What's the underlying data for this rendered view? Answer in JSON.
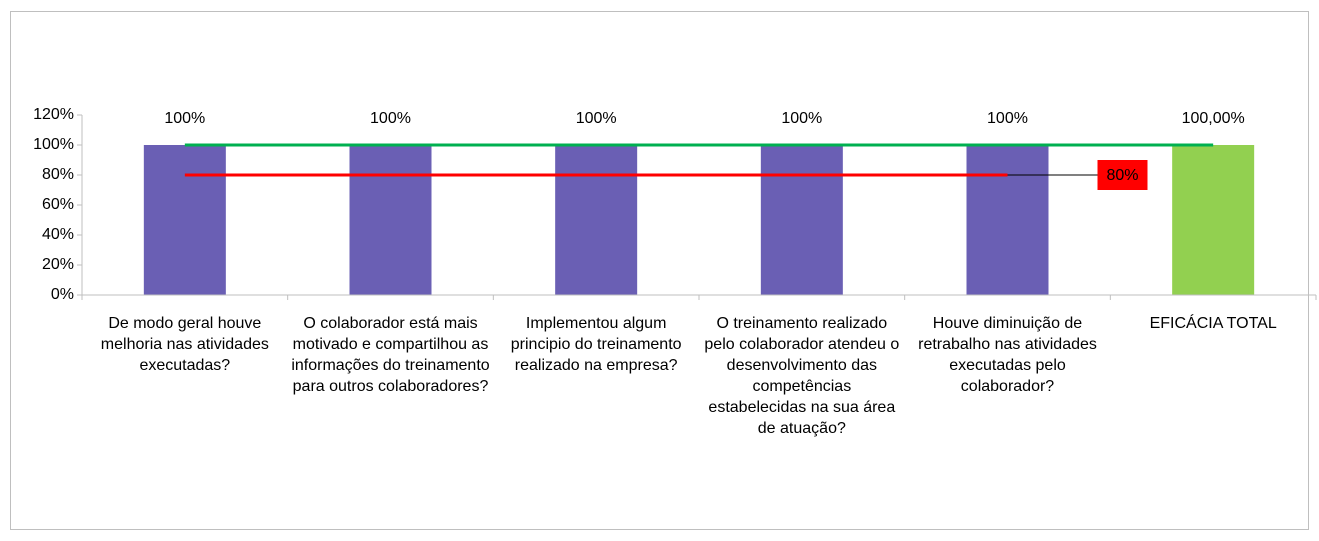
{
  "chart_data": {
    "type": "bar",
    "categories": [
      "De modo geral houve melhoria nas atividades executadas?",
      "O colaborador está mais motivado e compartilhou as informações do treinamento para outros colaboradores?",
      "Implementou algum principio do treinamento realizado na empresa?",
      "O treinamento realizado pelo colaborador atendeu o desenvolvimento das competências estabelecidas na sua área de atuação?",
      "Houve diminuição de retrabalho nas atividades executadas pelo colaborador?",
      "EFICÁCIA TOTAL"
    ],
    "values": [
      100,
      100,
      100,
      100,
      100,
      100
    ],
    "value_labels": [
      "100%",
      "100%",
      "100%",
      "100%",
      "100%",
      "100,00%"
    ],
    "colors": [
      "#6a5fb4",
      "#6a5fb4",
      "#6a5fb4",
      "#6a5fb4",
      "#6a5fb4",
      "#92d050"
    ],
    "series": [
      {
        "type": "line",
        "color": "#00b050",
        "values": [
          100,
          100,
          100,
          100,
          100,
          100
        ]
      },
      {
        "type": "line",
        "color": "#ff0000",
        "values": [
          80,
          80,
          80,
          80,
          80,
          null
        ],
        "value_labels": [
          null,
          null,
          null,
          null,
          "80%",
          null
        ]
      }
    ],
    "ylim": [
      0,
      120
    ],
    "yticks": [
      {
        "value": 0,
        "label": "0%"
      },
      {
        "value": 20,
        "label": "20%"
      },
      {
        "value": 40,
        "label": "40%"
      },
      {
        "value": 60,
        "label": "60%"
      },
      {
        "value": 80,
        "label": "80%"
      },
      {
        "value": 100,
        "label": "100%"
      },
      {
        "value": 120,
        "label": "120%"
      }
    ]
  }
}
